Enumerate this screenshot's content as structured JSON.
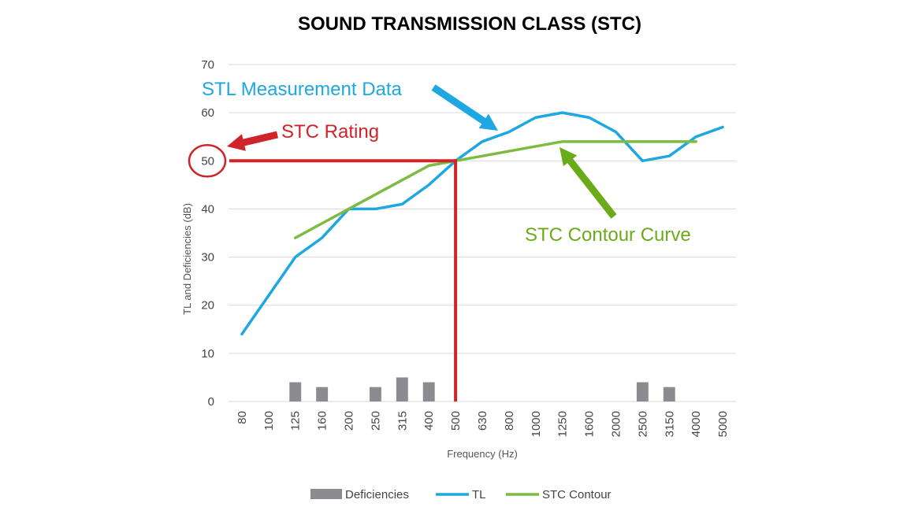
{
  "colors": {
    "tl": "#1ea7e1",
    "contour": "#7dbb42",
    "deficiency": "#8c8c90",
    "rating": "#d1232a",
    "grid": "#d9d9d9",
    "contour_arrow": "#6aab1a"
  },
  "chart_data": {
    "type": "line",
    "title": "SOUND TRANSMISSION CLASS (STC)",
    "xlabel": "Frequency (Hz)",
    "ylabel": "TL and Deficiencies (dB)",
    "ylim": [
      0,
      70
    ],
    "yticks": [
      "0",
      "10",
      "20",
      "30",
      "40",
      "50",
      "60",
      "70"
    ],
    "categories": [
      "80",
      "100",
      "125",
      "160",
      "200",
      "250",
      "315",
      "400",
      "500",
      "630",
      "800",
      "1000",
      "1250",
      "1600",
      "2000",
      "2500",
      "3150",
      "4000",
      "5000"
    ],
    "grid": true,
    "legend_position": "bottom",
    "series": [
      {
        "name": "Deficiencies",
        "kind": "bar",
        "values": [
          0,
          0,
          4,
          3,
          0,
          3,
          5,
          4,
          0,
          0,
          0,
          0,
          0,
          0,
          0,
          4,
          3,
          0,
          0
        ]
      },
      {
        "name": "TL",
        "kind": "line",
        "values": [
          14,
          22,
          30,
          34,
          40,
          40,
          41,
          45,
          50,
          54,
          56,
          59,
          60,
          59,
          56,
          50,
          51,
          55,
          57
        ]
      },
      {
        "name": "STC Contour",
        "kind": "line",
        "values": [
          null,
          null,
          34,
          37,
          40,
          43,
          46,
          49,
          50,
          51,
          52,
          53,
          54,
          54,
          54,
          54,
          54,
          54,
          null
        ]
      }
    ],
    "annotations": {
      "stl_label": "STL Measurement Data",
      "rating_label": "STC Rating",
      "contour_label": "STC Contour Curve",
      "rating_value": 50,
      "rating_frequency": "500"
    }
  }
}
